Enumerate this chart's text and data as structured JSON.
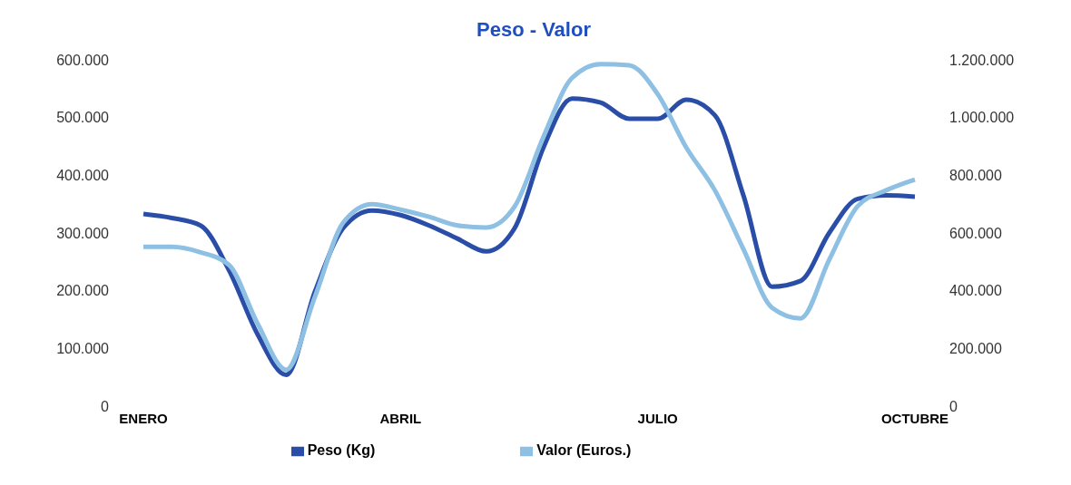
{
  "chart_data": {
    "type": "line",
    "title": "Peso - Valor",
    "categories": [
      "ENERO",
      null,
      null,
      null,
      null,
      null,
      null,
      null,
      null,
      "ABRIL",
      null,
      null,
      null,
      null,
      null,
      null,
      null,
      null,
      "JULIO",
      null,
      null,
      null,
      null,
      null,
      null,
      null,
      null,
      "OCTUBRE"
    ],
    "series": [
      {
        "name": "Peso (Kg)",
        "color": "#2a4ea8",
        "values": [
          333000,
          326000,
          313000,
          235000,
          124000,
          54000,
          198000,
          309000,
          339000,
          331000,
          313000,
          290000,
          268000,
          309000,
          448000,
          533000,
          526000,
          498000,
          498000,
          531000,
          504000,
          365000,
          207000,
          217000,
          300000,
          359000,
          365000,
          363000
        ]
      },
      {
        "name": "Valor (Euros.)",
        "color": "#8ec0e4",
        "axis": "y2",
        "values": [
          552000,
          552000,
          533000,
          489000,
          285000,
          126000,
          378000,
          637000,
          700000,
          681000,
          656000,
          626000,
          619000,
          693000,
          933000,
          1137000,
          1185000,
          1181000,
          1081000,
          896000,
          748000,
          544000,
          341000,
          304000,
          507000,
          693000,
          748000,
          785000
        ]
      }
    ],
    "ylim": [
      0,
      600000
    ],
    "yticks": [
      0,
      {
        "value": 100000,
        "label": "100.000"
      },
      {
        "value": 200000,
        "label": "200.000"
      },
      {
        "value": 300000,
        "label": "300.000"
      },
      {
        "value": 400000,
        "label": "400.000"
      },
      {
        "value": 500000,
        "label": "500.000"
      },
      {
        "value": 600000,
        "label": "600.000"
      }
    ],
    "y2lim": [
      0,
      1200000
    ],
    "y2ticks": [
      0,
      {
        "value": 200000,
        "label": "200.000"
      },
      {
        "value": 400000,
        "label": "400.000"
      },
      {
        "value": 600000,
        "label": "600.000"
      },
      {
        "value": 800000,
        "label": "800.000"
      },
      {
        "value": 1000000,
        "label": "1.000.000"
      },
      {
        "value": 1200000,
        "label": "1.200.000"
      }
    ],
    "grid": false,
    "legend": "bottom",
    "marker": "none",
    "line_style": "solid"
  }
}
